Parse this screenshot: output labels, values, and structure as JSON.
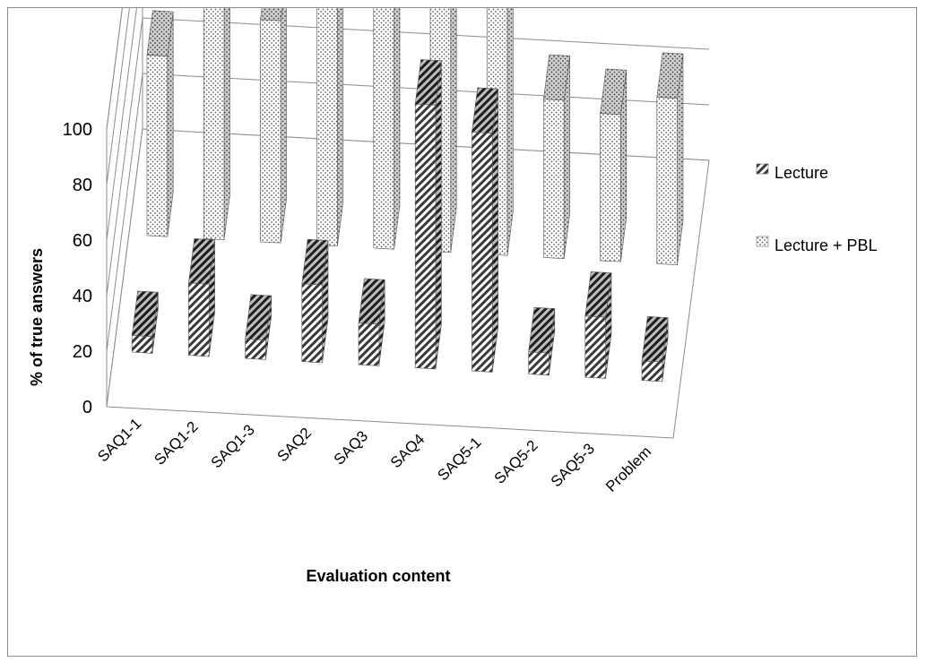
{
  "chart_data": {
    "type": "bar",
    "style": "3d-clustered-column",
    "xlabel": "Evaluation content",
    "ylabel": "% of true answers",
    "ylim": [
      0,
      100
    ],
    "yticks": [
      0,
      20,
      40,
      60,
      80,
      100
    ],
    "grid": true,
    "legend": "right",
    "categories": [
      "SAQ1-1",
      "SAQ1-2",
      "SAQ1-3",
      "SAQ2",
      "SAQ3",
      "SAQ4",
      "SAQ5-1",
      "SAQ5-2",
      "SAQ5-3",
      "Problem"
    ],
    "series": [
      {
        "name": "Lecture",
        "pattern": "diagonal-hatch",
        "values": [
          6,
          26,
          7,
          28,
          15,
          95,
          86,
          8,
          22,
          7
        ]
      },
      {
        "name": "Lecture + PBL",
        "pattern": "dotted",
        "values": [
          65,
          84,
          80,
          87,
          88,
          100,
          92,
          57,
          53,
          60
        ]
      }
    ]
  }
}
